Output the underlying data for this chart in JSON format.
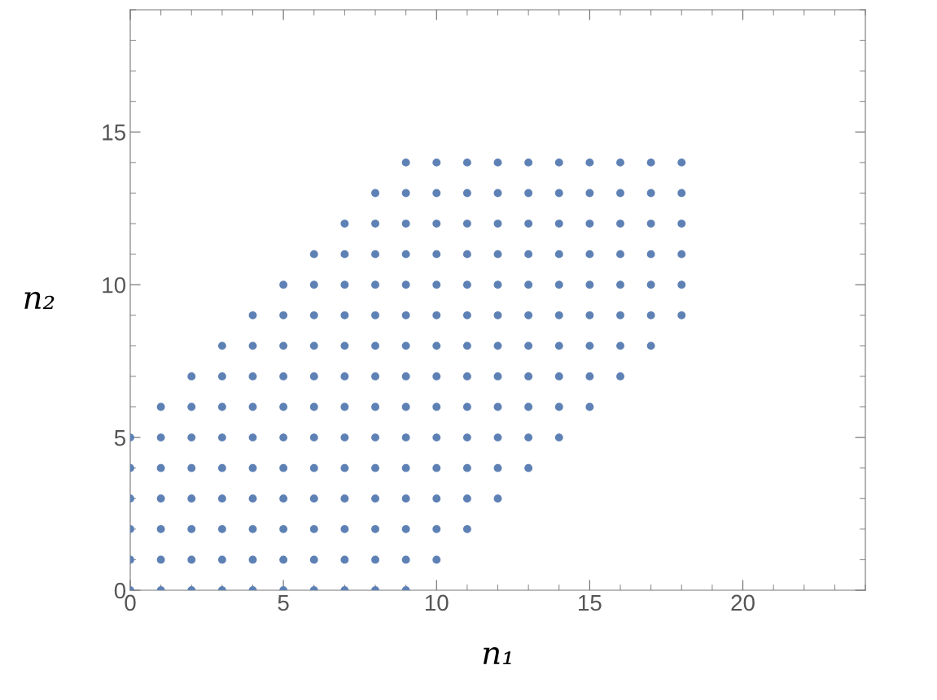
{
  "chart_data": {
    "type": "scatter",
    "xlabel": "n₁",
    "ylabel": "n₂",
    "xlim": [
      0,
      24
    ],
    "ylim": [
      0,
      19
    ],
    "xticks": [
      0,
      5,
      10,
      15,
      20
    ],
    "yticks": [
      0,
      5,
      10,
      15
    ],
    "grid": false,
    "marker": "circle",
    "legend": false,
    "series": [
      {
        "color": "#5e81b5",
        "x": [
          0,
          0,
          0,
          0,
          0,
          0
        ],
        "values": [
          0,
          1,
          2,
          3,
          4,
          5
        ]
      },
      {
        "color": "#5e81b5",
        "x": [
          1,
          1,
          1,
          1,
          1,
          1,
          1
        ],
        "values": [
          0,
          1,
          2,
          3,
          4,
          5,
          6
        ]
      },
      {
        "color": "#5e81b5",
        "x": [
          2,
          2,
          2,
          2,
          2,
          2,
          2,
          2
        ],
        "values": [
          0,
          1,
          2,
          3,
          4,
          5,
          6,
          7
        ]
      },
      {
        "color": "#5e81b5",
        "x": [
          3,
          3,
          3,
          3,
          3,
          3,
          3,
          3,
          3
        ],
        "values": [
          0,
          1,
          2,
          3,
          4,
          5,
          6,
          7,
          8
        ]
      },
      {
        "color": "#5e81b5",
        "x": [
          4,
          4,
          4,
          4,
          4,
          4,
          4,
          4,
          4,
          4
        ],
        "values": [
          0,
          1,
          2,
          3,
          4,
          5,
          6,
          7,
          8,
          9
        ]
      },
      {
        "color": "#5e81b5",
        "x": [
          5,
          5,
          5,
          5,
          5,
          5,
          5,
          5,
          5,
          5,
          5
        ],
        "values": [
          0,
          1,
          2,
          3,
          4,
          5,
          6,
          7,
          8,
          9,
          10
        ]
      },
      {
        "color": "#5e81b5",
        "x": [
          6,
          6,
          6,
          6,
          6,
          6,
          6,
          6,
          6,
          6,
          6,
          6
        ],
        "values": [
          0,
          1,
          2,
          3,
          4,
          5,
          6,
          7,
          8,
          9,
          10,
          11
        ]
      },
      {
        "color": "#5e81b5",
        "x": [
          7,
          7,
          7,
          7,
          7,
          7,
          7,
          7,
          7,
          7,
          7,
          7,
          7
        ],
        "values": [
          0,
          1,
          2,
          3,
          4,
          5,
          6,
          7,
          8,
          9,
          10,
          11,
          12
        ]
      },
      {
        "color": "#5e81b5",
        "x": [
          8,
          8,
          8,
          8,
          8,
          8,
          8,
          8,
          8,
          8,
          8,
          8,
          8,
          8
        ],
        "values": [
          0,
          1,
          2,
          3,
          4,
          5,
          6,
          7,
          8,
          9,
          10,
          11,
          12,
          13
        ]
      },
      {
        "color": "#5e81b5",
        "x": [
          9,
          9,
          9,
          9,
          9,
          9,
          9,
          9,
          9,
          9,
          9,
          9,
          9,
          9,
          9
        ],
        "values": [
          0,
          1,
          2,
          3,
          4,
          5,
          6,
          7,
          8,
          9,
          10,
          11,
          12,
          13,
          14
        ]
      },
      {
        "color": "#5e81b5",
        "x": [
          10,
          10,
          10,
          10,
          10,
          10,
          10,
          10,
          10,
          10,
          10,
          10,
          10,
          10
        ],
        "values": [
          1,
          2,
          3,
          4,
          5,
          6,
          7,
          8,
          9,
          10,
          11,
          12,
          13,
          14
        ]
      },
      {
        "color": "#5e81b5",
        "x": [
          11,
          11,
          11,
          11,
          11,
          11,
          11,
          11,
          11,
          11,
          11,
          11,
          11
        ],
        "values": [
          2,
          3,
          4,
          5,
          6,
          7,
          8,
          9,
          10,
          11,
          12,
          13,
          14
        ]
      },
      {
        "color": "#5e81b5",
        "x": [
          12,
          12,
          12,
          12,
          12,
          12,
          12,
          12,
          12,
          12,
          12,
          12
        ],
        "values": [
          3,
          4,
          5,
          6,
          7,
          8,
          9,
          10,
          11,
          12,
          13,
          14
        ]
      },
      {
        "color": "#5e81b5",
        "x": [
          13,
          13,
          13,
          13,
          13,
          13,
          13,
          13,
          13,
          13,
          13
        ],
        "values": [
          4,
          5,
          6,
          7,
          8,
          9,
          10,
          11,
          12,
          13,
          14
        ]
      },
      {
        "color": "#5e81b5",
        "x": [
          14,
          14,
          14,
          14,
          14,
          14,
          14,
          14,
          14,
          14
        ],
        "values": [
          5,
          6,
          7,
          8,
          9,
          10,
          11,
          12,
          13,
          14
        ]
      },
      {
        "color": "#5e81b5",
        "x": [
          15,
          15,
          15,
          15,
          15,
          15,
          15,
          15,
          15
        ],
        "values": [
          6,
          7,
          8,
          9,
          10,
          11,
          12,
          13,
          14
        ]
      },
      {
        "color": "#5e81b5",
        "x": [
          16,
          16,
          16,
          16,
          16,
          16,
          16,
          16
        ],
        "values": [
          7,
          8,
          9,
          10,
          11,
          12,
          13,
          14
        ]
      },
      {
        "color": "#5e81b5",
        "x": [
          17,
          17,
          17,
          17,
          17,
          17,
          17
        ],
        "values": [
          8,
          9,
          10,
          11,
          12,
          13,
          14
        ]
      },
      {
        "color": "#5e81b5",
        "x": [
          18,
          18,
          18,
          18,
          18,
          18
        ],
        "values": [
          9,
          10,
          11,
          12,
          13,
          14
        ]
      }
    ]
  }
}
